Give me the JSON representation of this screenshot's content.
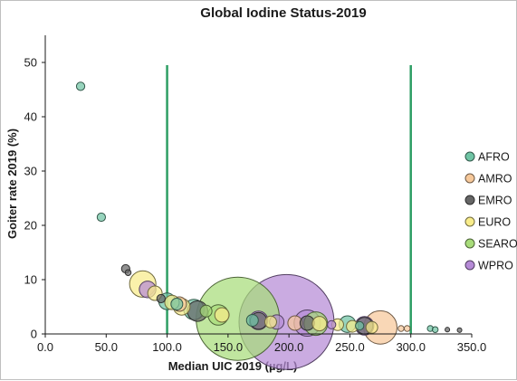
{
  "chart_data": {
    "type": "scatter",
    "title": "Global Iodine Status-2019",
    "xlabel": "Median UIC 2019 (µg/L)",
    "ylabel": "Goiter rate 2019 (%)",
    "xlim": [
      0,
      350
    ],
    "ylim": [
      0,
      55
    ],
    "x_ticks": [
      "0.0",
      "50.0",
      "100.0",
      "150.0",
      "200.0",
      "250.0",
      "300.0",
      "350.0"
    ],
    "y_ticks": [
      "0",
      "10",
      "20",
      "30",
      "40",
      "50"
    ],
    "x_tick_values": [
      0,
      50,
      100,
      150,
      200,
      250,
      300,
      350
    ],
    "y_tick_values": [
      0,
      10,
      20,
      30,
      40,
      50
    ],
    "grid": false,
    "legend_position": "right",
    "reference_lines": [
      {
        "x": 100,
        "y_range": [
          0,
          49.5
        ],
        "color": "#2e9e64"
      },
      {
        "x": 300,
        "y_range": [
          0,
          49.5
        ],
        "color": "#2e9e64"
      }
    ],
    "series": [
      {
        "name": "AFRO",
        "color": "#6fc4a4",
        "points": [
          {
            "x": 29,
            "y": 45.6,
            "size": 1
          },
          {
            "x": 46,
            "y": 21.5,
            "size": 1
          },
          {
            "x": 100,
            "y": 6.0,
            "size": 4
          },
          {
            "x": 108,
            "y": 5.5,
            "size": 2
          },
          {
            "x": 122,
            "y": 4.5,
            "size": 6
          },
          {
            "x": 170,
            "y": 2.5,
            "size": 2
          },
          {
            "x": 248,
            "y": 1.8,
            "size": 4
          },
          {
            "x": 258,
            "y": 1.5,
            "size": 1
          },
          {
            "x": 316,
            "y": 1.0,
            "size": 0.5
          },
          {
            "x": 320,
            "y": 0.8,
            "size": 0.5
          }
        ]
      },
      {
        "name": "AMRO",
        "color": "#f6c89a",
        "points": [
          {
            "x": 275,
            "y": 1.2,
            "size": 16
          },
          {
            "x": 110,
            "y": 5.5,
            "size": 3
          },
          {
            "x": 205,
            "y": 2.0,
            "size": 3
          },
          {
            "x": 292,
            "y": 1.0,
            "size": 0.5
          },
          {
            "x": 297,
            "y": 1.0,
            "size": 0.5
          }
        ]
      },
      {
        "name": "EMRO",
        "color": "#666666",
        "points": [
          {
            "x": 66,
            "y": 12.0,
            "size": 1
          },
          {
            "x": 68,
            "y": 11.3,
            "size": 0.5
          },
          {
            "x": 95,
            "y": 6.5,
            "size": 1
          },
          {
            "x": 125,
            "y": 4.2,
            "size": 6
          },
          {
            "x": 175,
            "y": 2.4,
            "size": 4
          },
          {
            "x": 215,
            "y": 2.0,
            "size": 3
          },
          {
            "x": 262,
            "y": 1.5,
            "size": 4
          },
          {
            "x": 330,
            "y": 0.8,
            "size": 0.3
          },
          {
            "x": 340,
            "y": 0.7,
            "size": 0.3
          }
        ]
      },
      {
        "name": "EURO",
        "color": "#f8ec8a",
        "points": [
          {
            "x": 80,
            "y": 9.2,
            "size": 10
          },
          {
            "x": 90,
            "y": 7.5,
            "size": 3
          },
          {
            "x": 104,
            "y": 5.8,
            "size": 3
          },
          {
            "x": 112,
            "y": 5.0,
            "size": 4
          },
          {
            "x": 145,
            "y": 3.5,
            "size": 3
          },
          {
            "x": 185,
            "y": 2.2,
            "size": 2
          },
          {
            "x": 225,
            "y": 1.9,
            "size": 3
          },
          {
            "x": 240,
            "y": 1.7,
            "size": 2
          },
          {
            "x": 252,
            "y": 1.4,
            "size": 2
          },
          {
            "x": 268,
            "y": 1.2,
            "size": 2
          }
        ]
      },
      {
        "name": "SEARO",
        "color": "#a8dc7a",
        "points": [
          {
            "x": 158,
            "y": 2.8,
            "size": 100
          },
          {
            "x": 142,
            "y": 3.5,
            "size": 6
          },
          {
            "x": 132,
            "y": 4.2,
            "size": 2
          },
          {
            "x": 222,
            "y": 1.9,
            "size": 8
          }
        ]
      },
      {
        "name": "WPRO",
        "color": "#b58ad6",
        "points": [
          {
            "x": 198,
            "y": 2.2,
            "size": 130
          },
          {
            "x": 84,
            "y": 8.2,
            "size": 4
          },
          {
            "x": 175,
            "y": 2.5,
            "size": 5
          },
          {
            "x": 190,
            "y": 2.2,
            "size": 3
          },
          {
            "x": 215,
            "y": 2.0,
            "size": 10
          },
          {
            "x": 262,
            "y": 1.5,
            "size": 5
          },
          {
            "x": 235,
            "y": 1.7,
            "size": 1
          }
        ]
      }
    ]
  }
}
